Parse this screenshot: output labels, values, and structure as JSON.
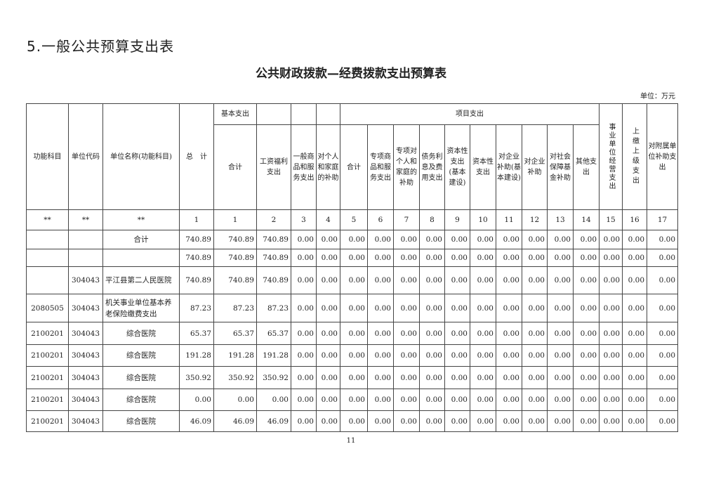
{
  "section_title": "5.一般公共预算支出表",
  "table_title": "公共财政拨款—经费拨款支出预算表",
  "unit": "单位：万元",
  "headers": {
    "func": "功能科目",
    "code": "单位代码",
    "name": "单位名称(功能科目)",
    "total": "总　计",
    "basic": "基本支出",
    "project": "项目支出",
    "cols": [
      "合计",
      "工资福利支出",
      "一般商品和服务支出",
      "对个人和家庭的补助",
      "合计",
      "专项商品和服务支出",
      "专项对个人和家庭的补助",
      "债务利息及费用支出",
      "资本性支出(基本建设)",
      "资本性支出",
      "对企业补助(基本建设)",
      "对企业补助",
      "对社会保障基金补助",
      "其他支出",
      "事业单位经营支出",
      "上缴上级支出",
      "对附属单位补助支出"
    ]
  },
  "index_row": [
    "**",
    "**",
    "**",
    "1",
    "1",
    "2",
    "3",
    "4",
    "5",
    "6",
    "7",
    "8",
    "9",
    "10",
    "11",
    "12",
    "13",
    "14",
    "15",
    "16",
    "17"
  ],
  "rows": [
    [
      "",
      "",
      "合计",
      "740.89",
      "740.89",
      "740.89",
      "0.00",
      "0.00",
      "0.00",
      "0.00",
      "0.00",
      "0.00",
      "0.00",
      "0.00",
      "0.00",
      "0.00",
      "0.00",
      "0.00",
      "0.00",
      "0.00",
      "0.00"
    ],
    [
      "",
      "",
      "",
      "740.89",
      "740.89",
      "740.89",
      "0.00",
      "0.00",
      "0.00",
      "0.00",
      "0.00",
      "0.00",
      "0.00",
      "0.00",
      "0.00",
      "0.00",
      "0.00",
      "0.00",
      "0.00",
      "0.00",
      "0.00"
    ],
    [
      "",
      "304043",
      "平江县第二人民医院",
      "740.89",
      "740.89",
      "740.89",
      "0.00",
      "0.00",
      "0.00",
      "0.00",
      "0.00",
      "0.00",
      "0.00",
      "0.00",
      "0.00",
      "0.00",
      "0.00",
      "0.00",
      "0.00",
      "0.00",
      "0.00"
    ],
    [
      "2080505",
      "304043",
      "机关事业单位基本养老保险缴费支出",
      "87.23",
      "87.23",
      "87.23",
      "0.00",
      "0.00",
      "0.00",
      "0.00",
      "0.00",
      "0.00",
      "0.00",
      "0.00",
      "0.00",
      "0.00",
      "0.00",
      "0.00",
      "0.00",
      "0.00",
      "0.00"
    ],
    [
      "2100201",
      "304043",
      "综合医院",
      "65.37",
      "65.37",
      "65.37",
      "0.00",
      "0.00",
      "0.00",
      "0.00",
      "0.00",
      "0.00",
      "0.00",
      "0.00",
      "0.00",
      "0.00",
      "0.00",
      "0.00",
      "0.00",
      "0.00",
      "0.00"
    ],
    [
      "2100201",
      "304043",
      "综合医院",
      "191.28",
      "191.28",
      "191.28",
      "0.00",
      "0.00",
      "0.00",
      "0.00",
      "0.00",
      "0.00",
      "0.00",
      "0.00",
      "0.00",
      "0.00",
      "0.00",
      "0.00",
      "0.00",
      "0.00",
      "0.00"
    ],
    [
      "2100201",
      "304043",
      "综合医院",
      "350.92",
      "350.92",
      "350.92",
      "0.00",
      "0.00",
      "0.00",
      "0.00",
      "0.00",
      "0.00",
      "0.00",
      "0.00",
      "0.00",
      "0.00",
      "0.00",
      "0.00",
      "0.00",
      "0.00",
      "0.00"
    ],
    [
      "2100201",
      "304043",
      "综合医院",
      "0.00",
      "0.00",
      "0.00",
      "0.00",
      "0.00",
      "0.00",
      "0.00",
      "0.00",
      "0.00",
      "0.00",
      "0.00",
      "0.00",
      "0.00",
      "0.00",
      "0.00",
      "0.00",
      "0.00",
      "0.00"
    ],
    [
      "2100201",
      "304043",
      "综合医院",
      "46.09",
      "46.09",
      "46.09",
      "0.00",
      "0.00",
      "0.00",
      "0.00",
      "0.00",
      "0.00",
      "0.00",
      "0.00",
      "0.00",
      "0.00",
      "0.00",
      "0.00",
      "0.00",
      "0.00",
      "0.00"
    ]
  ],
  "page_number": "11"
}
